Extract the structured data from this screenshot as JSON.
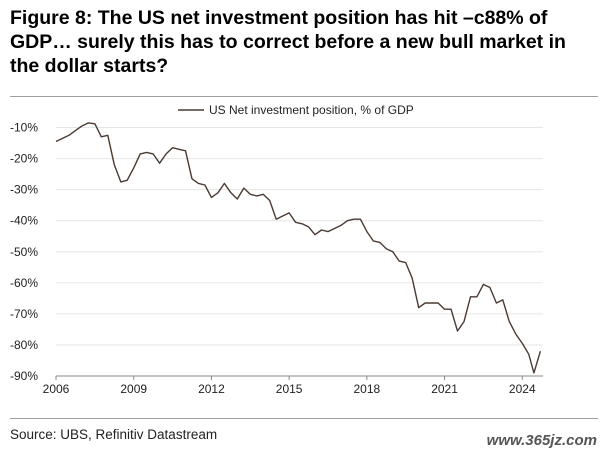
{
  "figure": {
    "title": "Figure 8: The US net investment position has hit –c88% of GDP… surely this has to correct before a new bull market in the dollar starts?",
    "source": "Source: UBS, Refinitiv Datastream",
    "watermark": "www.365jz.com"
  },
  "chart_data": {
    "type": "line",
    "title": "Figure 8: The US net investment position has hit –c88% of GDP… surely this has to correct before a new bull market in the dollar starts?",
    "xlabel": "",
    "ylabel": "",
    "xlim": [
      2006,
      2024.8
    ],
    "ylim": [
      -90,
      -5
    ],
    "x_ticks": [
      2006,
      2009,
      2012,
      2015,
      2018,
      2021,
      2024
    ],
    "y_ticks": [
      -10,
      -20,
      -30,
      -40,
      -50,
      -60,
      -70,
      -80,
      -90
    ],
    "y_tick_labels": [
      "-10%",
      "-20%",
      "-30%",
      "-40%",
      "-50%",
      "-60%",
      "-70%",
      "-80%",
      "-90%"
    ],
    "grid": "horizontal",
    "legend": "top-center",
    "series": [
      {
        "name": "US Net investment position, % of GDP",
        "color": "#4a3a33",
        "points": [
          [
            2006.0,
            -14.5
          ],
          [
            2006.5,
            -12.5
          ],
          [
            2006.75,
            -11.0
          ],
          [
            2007.0,
            -9.5
          ],
          [
            2007.25,
            -8.5
          ],
          [
            2007.5,
            -8.8
          ],
          [
            2007.75,
            -13.0
          ],
          [
            2008.0,
            -12.5
          ],
          [
            2008.25,
            -22.0
          ],
          [
            2008.5,
            -27.5
          ],
          [
            2008.75,
            -27.0
          ],
          [
            2009.0,
            -23.0
          ],
          [
            2009.25,
            -18.5
          ],
          [
            2009.5,
            -18.0
          ],
          [
            2009.75,
            -18.5
          ],
          [
            2010.0,
            -21.5
          ],
          [
            2010.25,
            -18.5
          ],
          [
            2010.5,
            -16.5
          ],
          [
            2010.75,
            -17.0
          ],
          [
            2011.0,
            -17.5
          ],
          [
            2011.25,
            -26.5
          ],
          [
            2011.5,
            -28.0
          ],
          [
            2011.75,
            -28.5
          ],
          [
            2012.0,
            -32.5
          ],
          [
            2012.25,
            -31.0
          ],
          [
            2012.5,
            -28.0
          ],
          [
            2012.75,
            -31.0
          ],
          [
            2013.0,
            -33.0
          ],
          [
            2013.25,
            -29.5
          ],
          [
            2013.5,
            -31.5
          ],
          [
            2013.75,
            -32.0
          ],
          [
            2014.0,
            -31.5
          ],
          [
            2014.25,
            -33.5
          ],
          [
            2014.5,
            -39.5
          ],
          [
            2014.75,
            -38.5
          ],
          [
            2015.0,
            -37.5
          ],
          [
            2015.25,
            -40.5
          ],
          [
            2015.5,
            -41.0
          ],
          [
            2015.75,
            -42.0
          ],
          [
            2016.0,
            -44.5
          ],
          [
            2016.25,
            -43.0
          ],
          [
            2016.5,
            -43.5
          ],
          [
            2016.75,
            -42.5
          ],
          [
            2017.0,
            -41.5
          ],
          [
            2017.25,
            -40.0
          ],
          [
            2017.5,
            -39.5
          ],
          [
            2017.75,
            -39.5
          ],
          [
            2018.0,
            -43.5
          ],
          [
            2018.25,
            -46.5
          ],
          [
            2018.5,
            -47.0
          ],
          [
            2018.75,
            -49.0
          ],
          [
            2019.0,
            -50.0
          ],
          [
            2019.25,
            -53.0
          ],
          [
            2019.5,
            -53.5
          ],
          [
            2019.75,
            -58.5
          ],
          [
            2020.0,
            -68.0
          ],
          [
            2020.25,
            -66.5
          ],
          [
            2020.5,
            -66.5
          ],
          [
            2020.75,
            -66.5
          ],
          [
            2021.0,
            -68.5
          ],
          [
            2021.25,
            -68.5
          ],
          [
            2021.5,
            -75.5
          ],
          [
            2021.75,
            -72.5
          ],
          [
            2022.0,
            -64.5
          ],
          [
            2022.25,
            -64.5
          ],
          [
            2022.5,
            -60.5
          ],
          [
            2022.75,
            -61.5
          ],
          [
            2023.0,
            -66.5
          ],
          [
            2023.25,
            -65.5
          ],
          [
            2023.5,
            -72.5
          ],
          [
            2023.75,
            -76.5
          ],
          [
            2024.0,
            -79.5
          ],
          [
            2024.25,
            -83.0
          ],
          [
            2024.45,
            -89.0
          ],
          [
            2024.7,
            -82.0
          ]
        ]
      }
    ]
  }
}
